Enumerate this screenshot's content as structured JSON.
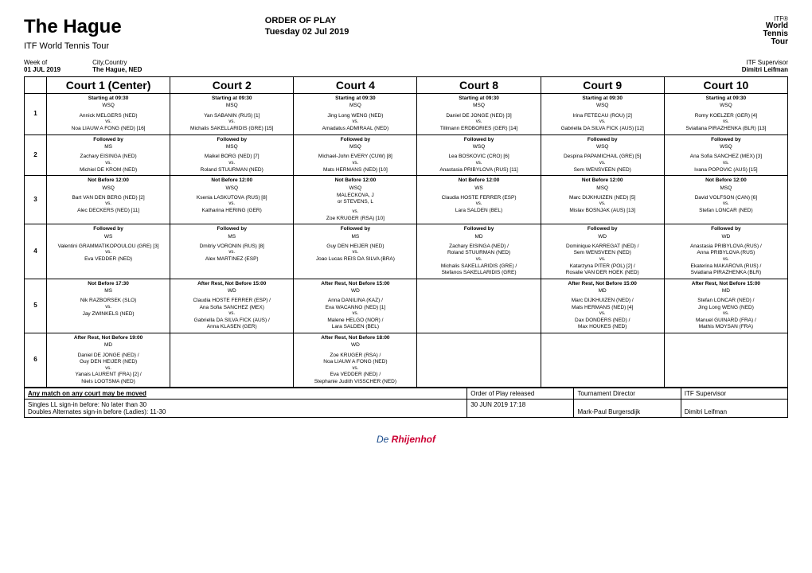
{
  "title": "The Hague",
  "tour": "ITF World Tennis Tour",
  "order_label": "ORDER OF PLAY",
  "order_date": "Tuesday 02 Jul 2019",
  "week_label": "Week of",
  "week_val": "01 JUL 2019",
  "city_label": "City,Country",
  "city_val": "The Hague, NED",
  "sup_label": "ITF Supervisor",
  "sup_val": "Dimitri Leifman",
  "logo_line1": "ITF®",
  "logo_line2": "World",
  "logo_line3": "Tennis",
  "logo_line4": "Tour",
  "courts": [
    "Court 1 (Center)",
    "Court 2",
    "Court 4",
    "Court 8",
    "Court 9",
    "Court 10"
  ],
  "rows": [
    {
      "n": "1",
      "cells": [
        {
          "h": "Starting at 09:30",
          "s": "WSQ",
          "p1": "Annick MELGERS (NED)",
          "p2": "Noa LIAUW A FONG (NED) [16]"
        },
        {
          "h": "Starting at 09:30",
          "s": "MSQ",
          "p1": "Yan SABANIN (RUS) [1]",
          "p2": "Michalis SAKELLARIDIS (GRE) [15]"
        },
        {
          "h": "Starting at 09:30",
          "s": "MSQ",
          "p1": "Jing Long WENG (NED)",
          "p2": "Amadatus ADMIRAAL (NED)"
        },
        {
          "h": "Starting at 09:30",
          "s": "MSQ",
          "p1": "Daniel DE JONGE (NED) [3]",
          "p2": "Tillmann ERDBORIES (GER) [14]"
        },
        {
          "h": "Starting at 09:30",
          "s": "WSQ",
          "p1": "Irina FETECAU (ROU) [2]",
          "p2": "Gabriella DA SILVA FICK (AUS) [12]"
        },
        {
          "h": "Starting at 09:30",
          "s": "WSQ",
          "p1": "Romy KOELZER (GER) [4]",
          "p2": "Sviatlana PIRAZHENKA (BLR) [13]"
        }
      ]
    },
    {
      "n": "2",
      "cells": [
        {
          "h": "Followed by",
          "s": "MS",
          "p1": "Zachary EISINGA (NED)",
          "p2": "Michiel DE KROM (NED)"
        },
        {
          "h": "Followed by",
          "s": "MSQ",
          "p1": "Maikel BORG (NED) [7]",
          "p2": "Roland STUURMAN (NED)"
        },
        {
          "h": "Followed by",
          "s": "MSQ",
          "p1": "Michael-John EVERY (CUW) [8]",
          "p2": "Mats HERMANS (NED) [10]"
        },
        {
          "h": "Followed by",
          "s": "WSQ",
          "p1": "Lea BOSKOVIC (CRO) [6]",
          "p2": "Anastasia PRIBYLOVA (RUS) [11]"
        },
        {
          "h": "Followed by",
          "s": "WSQ",
          "p1": "Despina PAPAMICHAIL (GRE) [5]",
          "p2": "Sem WENSVEEN (NED)"
        },
        {
          "h": "Followed by",
          "s": "WSQ",
          "p1": "Ana Sofia SANCHEZ (MEX) [3]",
          "p2": "Ivana POPOVIC (AUS) [15]"
        }
      ]
    },
    {
      "n": "3",
      "cells": [
        {
          "h": "Not Before 12:00",
          "s": "WSQ",
          "p1": "Bart VAN DEN BERG (NED) [2]",
          "p2": "Alec DECKERS (NED) [11]"
        },
        {
          "h": "Not Before 12:00",
          "s": "WSQ",
          "p1": "Ksenia LASKUTOVA (RUS) [8]",
          "p2": "Katharina HERING (GER)"
        },
        {
          "h": "Not Before 12:00",
          "s": "WSQ",
          "pre": "MALECKOVA, J\nor STEVENS, L",
          "p1": "",
          "p2": "Zoe KRUGER (RSA) [10]"
        },
        {
          "h": "Not Before 12:00",
          "s": "WS",
          "p1": "Claudia HOSTE FERRER (ESP)",
          "p2": "Lara SALDEN (BEL)"
        },
        {
          "h": "Not Before 12:00",
          "s": "MSQ",
          "p1": "Marc DIJKHUIZEN (NED) [5]",
          "p2": "Mislav BOSNJAK (AUS) [13]"
        },
        {
          "h": "Not Before 12:00",
          "s": "MSQ",
          "p1": "David VOLFSON (CAN) [6]",
          "p2": "Stefan LONCAR (NED)"
        }
      ]
    },
    {
      "n": "4",
      "cells": [
        {
          "h": "Followed by",
          "s": "WS",
          "p1": "Valentini GRAMMATIKOPOULOU (GRE) [3]",
          "p2": "Eva VEDDER (NED)"
        },
        {
          "h": "Followed by",
          "s": "MS",
          "p1": "Dmitriy VORONIN (RUS) [8]",
          "p2": "Alex MARTINEZ (ESP)"
        },
        {
          "h": "Followed by",
          "s": "MS",
          "p1": "Guy DEN HEIJER (NED)",
          "p2": "Joao Lucas REIS DA SILVA (BRA)"
        },
        {
          "h": "Followed by",
          "s": "MD",
          "p1": "Zachary EISINGA (NED) /\nRoland STUURMAN (NED)",
          "p2": "Michalis SAKELLARIDIS (GRE) /\nStefanos SAKELLARIDIS (GRE)"
        },
        {
          "h": "Followed by",
          "s": "WD",
          "p1": "Dominique KARREGAT (NED) /\nSem WENSVEEN (NED)",
          "p2": "Katarzyna PITER (POL) [2] /\nRosalie VAN DER HOEK (NED)"
        },
        {
          "h": "Followed by",
          "s": "WD",
          "p1": "Anastasia PRIBYLOVA (RUS) /\nAnna PRIBYLOVA (RUS)",
          "p2": "Ekaterina MAKAROVA (RUS) /\nSviatlana PIRAZHENKA (BLR)"
        }
      ]
    },
    {
      "n": "5",
      "cells": [
        {
          "h": "Not Before 17:30",
          "s": "MS",
          "p1": "Nik RAZBORSEK (SLO)",
          "p2": "Jay ZWINKELS (NED)"
        },
        {
          "h": "After Rest, Not Before 15:00",
          "s": "WD",
          "p1": "Claudia HOSTE FERRER (ESP) /\nAna Sofia SANCHEZ (MEX)",
          "p2": "Gabriella DA SILVA FICK (AUS) /\nAnna KLASEN (GER)"
        },
        {
          "h": "After Rest, Not Before 15:00",
          "s": "WD",
          "p1": "Anna DANILINA (KAZ) /\nEva WACANNO (NED) [1]",
          "p2": "Malene HELGO (NOR) /\nLara SALDEN (BEL)"
        },
        {
          "h": "",
          "s": "",
          "p1": "",
          "p2": ""
        },
        {
          "h": "After Rest, Not Before 15:00",
          "s": "MD",
          "p1": "Marc DIJKHUIZEN (NED) /\nMats HERMANS (NED) [4]",
          "p2": "Dax DONDERS (NED) /\nMax HOUKES (NED)"
        },
        {
          "h": "After Rest, Not Before 15:00",
          "s": "MD",
          "p1": "Stefan LONCAR (NED) /\nJing Long WENG (NED)",
          "p2": "Manuel GUINARD (FRA) /\nMathis MOYSAN (FRA)"
        }
      ]
    },
    {
      "n": "6",
      "cells": [
        {
          "h": "After Rest, Not Before 19:00",
          "s": "MD",
          "p1": "Daniel DE JONGE (NED) /\nGuy DEN HEIJER (NED)",
          "p2": "Yanais LAURENT (FRA) [2] /\nNiels LOOTSMA (NED)"
        },
        {
          "h": "",
          "s": "",
          "p1": "",
          "p2": ""
        },
        {
          "h": "After Rest, Not Before 18:00",
          "s": "WD",
          "p1": "Zoe KRUGER (RSA) /\nNoa LIAUW A FONG (NED)",
          "p2": "Eva VEDDER (NED) /\nStephanie Judith VISSCHER (NED)"
        },
        {
          "h": "",
          "s": "",
          "p1": "",
          "p2": ""
        },
        {
          "h": "",
          "s": "",
          "p1": "",
          "p2": ""
        },
        {
          "h": "",
          "s": "",
          "p1": "",
          "p2": ""
        }
      ]
    }
  ],
  "footer": {
    "note": "Any  match on any court may be moved",
    "line1": "Singles LL sign-in before: No later than 30",
    "line2": "Doubles Alternates sign-in before (Ladies): 11-30",
    "released_lbl": "Order of Play released",
    "released_val": "30 JUN 2019 17:18",
    "td_lbl": "Tournament Director",
    "td_val": "Mark-Paul Burgersdijk",
    "sup_lbl": "ITF Supervisor",
    "sup_val": "Dimitri Leifman"
  },
  "sponsor1": "De",
  "sponsor2": "Rhijenhof"
}
